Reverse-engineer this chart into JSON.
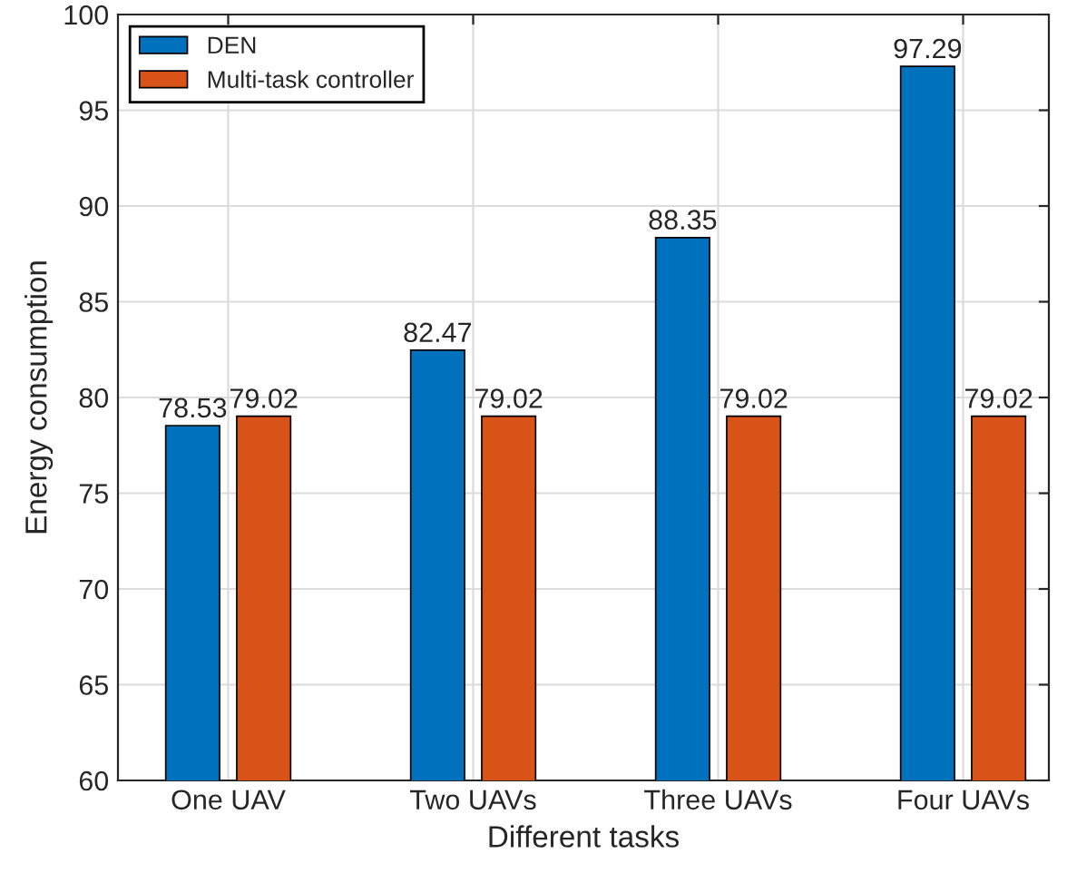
{
  "chart_data": {
    "type": "bar",
    "xlabel": "Different tasks",
    "ylabel": "Energy consumption",
    "categories": [
      "One UAV",
      "Two UAVs",
      "Three UAVs",
      "Four UAVs"
    ],
    "series": [
      {
        "name": "DEN",
        "color": "#0072bd",
        "values": [
          78.53,
          82.47,
          88.35,
          97.29
        ]
      },
      {
        "name": "Multi-task controller",
        "color": "#d95319",
        "values": [
          79.02,
          79.02,
          79.02,
          79.02
        ]
      }
    ],
    "ylim": [
      60,
      100
    ],
    "yticks": [
      60,
      65,
      70,
      75,
      80,
      85,
      90,
      95,
      100
    ],
    "grid": true,
    "legend": "top left",
    "data_labels": true
  }
}
